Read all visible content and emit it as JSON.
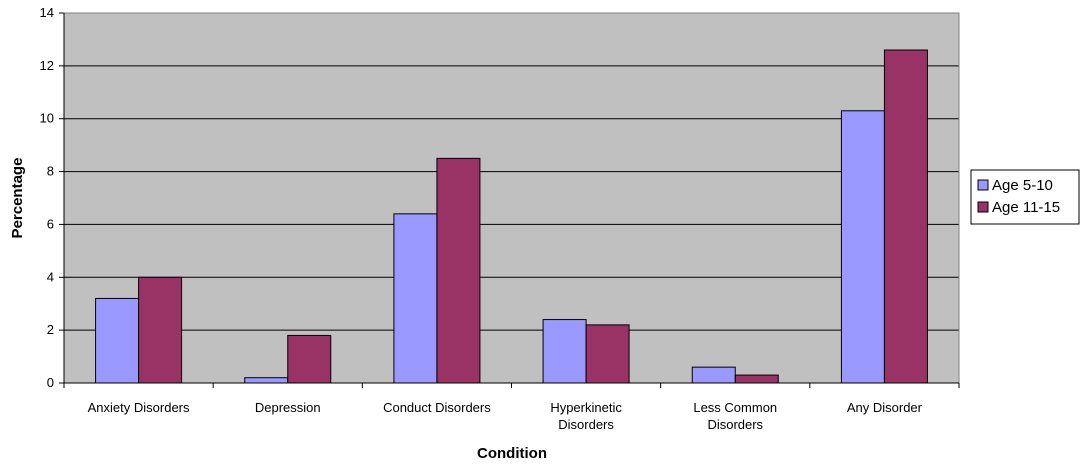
{
  "chart_data": {
    "type": "bar",
    "xlabel": "Condition",
    "ylabel": "Percentage",
    "ylim": [
      0,
      14
    ],
    "yticks": [
      0,
      2,
      4,
      6,
      8,
      10,
      12,
      14
    ],
    "categories": [
      [
        "Anxiety Disorders"
      ],
      [
        "Depression"
      ],
      [
        "Conduct Disorders"
      ],
      [
        "Hyperkinetic",
        "Disorders"
      ],
      [
        "Less Common",
        "Disorders"
      ],
      [
        "Any Disorder"
      ]
    ],
    "series": [
      {
        "name": "Age 5-10",
        "color": "#9999ff",
        "values": [
          3.2,
          0.2,
          6.4,
          2.4,
          0.6,
          10.3
        ]
      },
      {
        "name": "Age 11-15",
        "color": "#993366",
        "values": [
          4.0,
          1.8,
          8.5,
          2.2,
          0.3,
          12.6
        ]
      }
    ],
    "grid": true,
    "plot_background": "#c0c0c0",
    "legend_position": "right"
  }
}
